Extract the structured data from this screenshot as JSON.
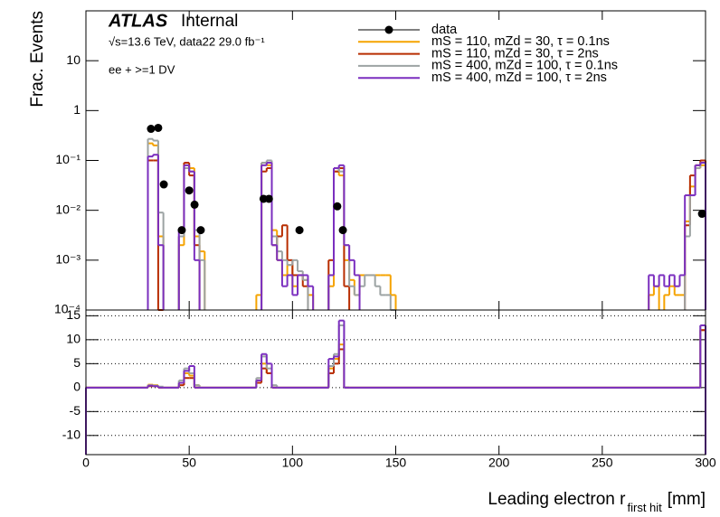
{
  "chart_data": [
    {
      "type": "histogram",
      "log": true,
      "ylabel": "Frac. Events",
      "annotations": [
        "ATLAS",
        "Internal",
        "√s=13.6 TeV, data22 29.0 fb⁻¹",
        "ee + >=1 DV"
      ],
      "xlim": [
        0,
        300
      ],
      "ylim": [
        0.0001,
        100
      ],
      "yticks": [
        {
          "value": 0.0001,
          "label": "10⁻⁴"
        },
        {
          "value": 0.001,
          "label": "10⁻³"
        },
        {
          "value": 0.01,
          "label": "10⁻²"
        },
        {
          "value": 0.1,
          "label": "10⁻¹"
        },
        1,
        10
      ],
      "bins": [
        30,
        32.5,
        35,
        37.5,
        45,
        47.5,
        50,
        52.5,
        55,
        57.5,
        82.5,
        85,
        87.5,
        90,
        92.5,
        95,
        97.5,
        100,
        102.5,
        105,
        107.5,
        110,
        117.5,
        120,
        122.5,
        125,
        127.5,
        130,
        132.5,
        135,
        137.5,
        140,
        142.5,
        145,
        147.5,
        150,
        272.5,
        275,
        277.5,
        280,
        282.5,
        285,
        287.5,
        290,
        292.5,
        295,
        297.5,
        300
      ],
      "series": [
        {
          "name": "data",
          "color": "#000000",
          "x": [
            31.5,
            35,
            37.7,
            46.4,
            50,
            52.6,
            55.6,
            86,
            88.6,
            103.4,
            121.7,
            124.4,
            298.3
          ],
          "values": [
            0.43,
            0.45,
            0.033,
            0.004,
            0.025,
            0.013,
            0.004,
            0.017,
            0.017,
            0.004,
            0.012,
            0.004,
            0.0085
          ]
        },
        {
          "name": "mS = 110, mZd = 30, τ = 0.1ns",
          "color": "#f5a300",
          "values": [
            0.22,
            0.2,
            0.003,
            null,
            0.002,
            0.08,
            0.07,
            0.003,
            0.0015,
            null,
            0.0002,
            0.09,
            0.08,
            0.004,
            0.001,
            0.0005,
            0.0008,
            0.0003,
            0.0005,
            0.0004,
            0.0002,
            null,
            0.0003,
            0.06,
            0.05,
            0.001,
            0.0004,
            0.0002,
            0.0005,
            0.0005,
            0.0005,
            0.0005,
            0.0005,
            0.0005,
            0.0002,
            null,
            0.0002,
            0.0003,
            null,
            0.0002,
            0.0003,
            0.0002,
            0.0002,
            0.006,
            0.03,
            0.07,
            0.08
          ]
        },
        {
          "name": "mS = 110, mZd = 30, τ = 2ns",
          "color": "#b82d00",
          "values": [
            0.1,
            0.1,
            0.0001,
            null,
            0.003,
            0.09,
            0.05,
            0.002,
            null,
            null,
            null,
            0.06,
            0.07,
            0.002,
            0.003,
            0.005,
            0.001,
            0.0005,
            0.0005,
            0.0003,
            null,
            null,
            0.001,
            0.06,
            0.07,
            0.0003,
            null,
            null,
            null,
            null,
            null,
            null,
            null,
            null,
            null,
            null,
            null,
            null,
            null,
            null,
            null,
            null,
            null,
            0.005,
            0.05,
            0.08,
            0.1
          ]
        },
        {
          "name": "mS = 400, mZd = 100, τ = 0.1ns",
          "color": "#9ca3a3",
          "values": [
            0.27,
            0.25,
            0.009,
            null,
            0.003,
            0.07,
            0.06,
            0.004,
            0.001,
            null,
            null,
            0.09,
            0.1,
            0.003,
            0.0015,
            0.001,
            0.0008,
            0.001,
            0.0006,
            0.0004,
            null,
            null,
            0.0005,
            0.07,
            0.06,
            0.002,
            0.0003,
            0.0002,
            0.0003,
            0.0005,
            0.0005,
            0.0003,
            0.0002,
            0.0002,
            0.0001,
            null,
            null,
            null,
            null,
            null,
            null,
            null,
            null,
            0.003,
            0.02,
            0.07,
            0.09
          ]
        },
        {
          "name": "mS = 400, mZd = 100, τ = 2ns",
          "color": "#7b2fbf",
          "values": [
            0.12,
            0.13,
            0.002,
            null,
            0.004,
            0.08,
            0.06,
            0.001,
            null,
            null,
            null,
            0.08,
            0.09,
            0.002,
            0.001,
            0.0003,
            0.0005,
            0.0002,
            0.0005,
            0.0005,
            0.0003,
            null,
            0.0005,
            0.07,
            0.08,
            0.002,
            0.001,
            0.0005,
            null,
            null,
            null,
            null,
            null,
            null,
            null,
            null,
            0.0005,
            0.0003,
            0.0005,
            0.0003,
            0.0005,
            0.0003,
            0.0005,
            0.02,
            0.02,
            0.08,
            0.09
          ]
        }
      ]
    },
    {
      "type": "histogram",
      "log": false,
      "grid": true,
      "xlabel": [
        "Leading electron r",
        "first hit",
        "[mm]"
      ],
      "xlim": [
        0,
        300
      ],
      "xticks": [
        0,
        50,
        100,
        150,
        200,
        250,
        300
      ],
      "ylim": [
        -14,
        16.2
      ],
      "yticks": [
        -10,
        -5,
        0,
        5,
        10,
        15
      ],
      "bins": [
        0,
        30,
        32.5,
        35,
        37.5,
        45,
        47.5,
        50,
        52.5,
        55,
        82.5,
        85,
        87.5,
        90,
        92.5,
        117.5,
        120,
        122.5,
        125,
        127.5,
        295,
        297.5,
        300
      ],
      "series": [
        {
          "color": "#f5a300",
          "values": [
            0,
            0.6,
            0.5,
            0,
            0,
            1,
            3,
            2.5,
            0.5,
            0,
            1.5,
            5,
            3,
            0,
            0,
            4,
            6,
            9,
            0,
            0,
            0,
            12
          ]
        },
        {
          "color": "#b82d00",
          "values": [
            0,
            0.3,
            0.3,
            0,
            0,
            0.5,
            2,
            2,
            0,
            0,
            1,
            4,
            3,
            0,
            0,
            3,
            5,
            8,
            0,
            0,
            0,
            12
          ]
        },
        {
          "color": "#9ca3a3",
          "values": [
            0,
            0.5,
            0.4,
            0.2,
            0,
            1.5,
            4,
            3,
            0.5,
            0,
            2,
            6.5,
            4,
            0.5,
            0,
            4.5,
            7,
            13,
            0,
            0,
            0,
            13
          ]
        },
        {
          "color": "#7b2fbf",
          "values": [
            0,
            0.4,
            0.3,
            0,
            0,
            1,
            3.5,
            4.5,
            0,
            0,
            1.5,
            7,
            5,
            0,
            0,
            6,
            6.5,
            14,
            0,
            0,
            0,
            13
          ]
        }
      ]
    }
  ]
}
